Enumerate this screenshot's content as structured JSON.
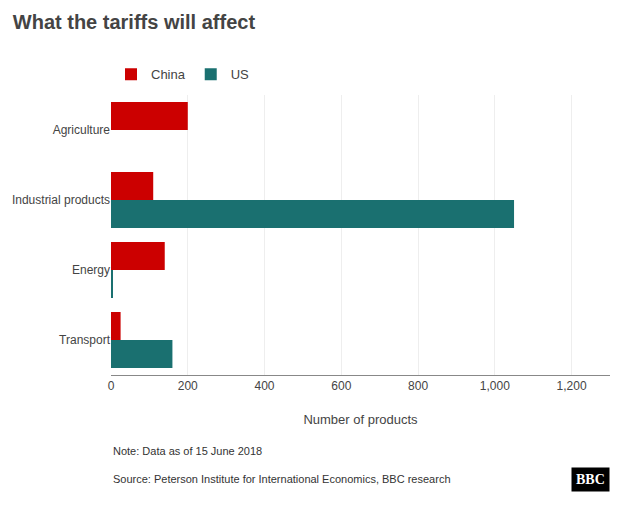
{
  "chart_data": {
    "type": "bar",
    "orientation": "horizontal",
    "title": "What the tariffs will affect",
    "categories": [
      "Agriculture",
      "Industrial products",
      "Energy",
      "Transport"
    ],
    "series": [
      {
        "name": "China",
        "color": "#cc0000",
        "values": [
          200,
          110,
          140,
          25
        ]
      },
      {
        "name": "US",
        "color": "#1a7070",
        "values": [
          0,
          1050,
          5,
          160
        ]
      }
    ],
    "xlabel": "Number of products",
    "xlim": [
      0,
      1300
    ],
    "xticks": [
      0,
      200,
      400,
      600,
      800,
      {
        "value": 1000,
        "label": "1,000"
      },
      {
        "value": 1200,
        "label": "1,200"
      }
    ],
    "grid": true,
    "legend": "top left",
    "annotations": [
      "Note: Data as of 15 June 2018",
      "Source: Peterson Institute for International Economics, BBC research",
      "BBC"
    ]
  }
}
